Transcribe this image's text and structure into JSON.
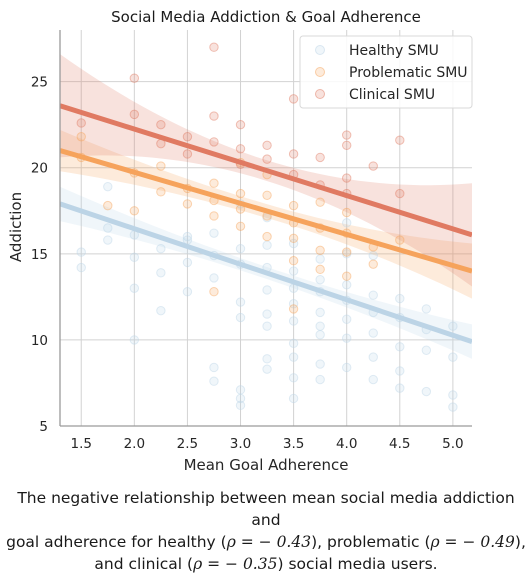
{
  "chart_data": {
    "type": "scatter",
    "title": "Social Media Addiction & Goal Adherence",
    "xlabel": "Mean Goal Adherence",
    "ylabel": "Addiction",
    "xlim": [
      1.3,
      5.18
    ],
    "ylim": [
      5,
      28
    ],
    "xticks": [
      "1.5",
      "2.0",
      "2.5",
      "3.0",
      "3.5",
      "4.0",
      "4.5",
      "5.0"
    ],
    "yticks": [
      "5",
      "10",
      "15",
      "20",
      "25"
    ],
    "grid": true,
    "legend_position": "top-right",
    "series": [
      {
        "name": "Healthy SMU",
        "color": "#bcd4e6",
        "trend": {
          "x": [
            1.3,
            5.18
          ],
          "y": [
            17.9,
            9.9
          ]
        },
        "ci_halfwidth": [
          1.0,
          0.35,
          1.0
        ],
        "points": [
          [
            1.5,
            14.2
          ],
          [
            1.5,
            15.1
          ],
          [
            1.75,
            16.5
          ],
          [
            1.75,
            18.9
          ],
          [
            1.75,
            15.8
          ],
          [
            2.0,
            16.1
          ],
          [
            2.0,
            14.8
          ],
          [
            2.0,
            13.0
          ],
          [
            2.0,
            10.0
          ],
          [
            2.25,
            15.3
          ],
          [
            2.25,
            13.9
          ],
          [
            2.25,
            11.7
          ],
          [
            2.5,
            16.0
          ],
          [
            2.5,
            14.5
          ],
          [
            2.5,
            12.8
          ],
          [
            2.5,
            15.8
          ],
          [
            2.75,
            16.2
          ],
          [
            2.75,
            14.9
          ],
          [
            2.75,
            13.6
          ],
          [
            2.75,
            8.4
          ],
          [
            2.75,
            7.6
          ],
          [
            3.0,
            17.9
          ],
          [
            3.0,
            15.3
          ],
          [
            3.0,
            14.4
          ],
          [
            3.0,
            12.2
          ],
          [
            3.0,
            11.3
          ],
          [
            3.0,
            7.1
          ],
          [
            3.0,
            6.6
          ],
          [
            3.0,
            6.2
          ],
          [
            3.25,
            17.1
          ],
          [
            3.25,
            15.5
          ],
          [
            3.25,
            14.2
          ],
          [
            3.25,
            12.9
          ],
          [
            3.25,
            11.5
          ],
          [
            3.25,
            10.8
          ],
          [
            3.25,
            8.3
          ],
          [
            3.25,
            8.9
          ],
          [
            3.5,
            15.6
          ],
          [
            3.5,
            14.0
          ],
          [
            3.5,
            13.0
          ],
          [
            3.5,
            12.1
          ],
          [
            3.5,
            11.1
          ],
          [
            3.5,
            9.8
          ],
          [
            3.5,
            9.0
          ],
          [
            3.5,
            7.8
          ],
          [
            3.5,
            6.6
          ],
          [
            3.75,
            14.7
          ],
          [
            3.75,
            13.5
          ],
          [
            3.75,
            12.8
          ],
          [
            3.75,
            11.6
          ],
          [
            3.75,
            10.8
          ],
          [
            3.75,
            10.3
          ],
          [
            3.75,
            8.6
          ],
          [
            3.75,
            7.7
          ],
          [
            4.0,
            16.8
          ],
          [
            4.0,
            15.0
          ],
          [
            4.0,
            13.2
          ],
          [
            4.0,
            12.3
          ],
          [
            4.0,
            11.2
          ],
          [
            4.0,
            10.1
          ],
          [
            4.0,
            8.4
          ],
          [
            4.25,
            14.9
          ],
          [
            4.25,
            12.6
          ],
          [
            4.25,
            11.6
          ],
          [
            4.25,
            10.4
          ],
          [
            4.25,
            9.0
          ],
          [
            4.25,
            7.7
          ],
          [
            4.5,
            12.4
          ],
          [
            4.5,
            11.3
          ],
          [
            4.5,
            9.6
          ],
          [
            4.5,
            8.2
          ],
          [
            4.5,
            7.2
          ],
          [
            4.75,
            11.8
          ],
          [
            4.75,
            10.6
          ],
          [
            4.75,
            9.4
          ],
          [
            4.75,
            7.0
          ],
          [
            5.0,
            10.8
          ],
          [
            5.0,
            9.0
          ],
          [
            5.0,
            6.8
          ],
          [
            5.0,
            6.1
          ]
        ]
      },
      {
        "name": "Problematic SMU",
        "color": "#f6a35c",
        "trend": {
          "x": [
            1.3,
            5.18
          ],
          "y": [
            21.0,
            14.0
          ]
        },
        "ci_halfwidth": [
          1.2,
          0.4,
          1.6
        ],
        "points": [
          [
            1.5,
            20.6
          ],
          [
            1.5,
            21.8
          ],
          [
            1.75,
            17.8
          ],
          [
            2.0,
            19.7
          ],
          [
            2.0,
            17.5
          ],
          [
            2.25,
            18.6
          ],
          [
            2.25,
            20.1
          ],
          [
            2.5,
            18.8
          ],
          [
            2.5,
            17.9
          ],
          [
            2.75,
            19.1
          ],
          [
            2.75,
            18.1
          ],
          [
            2.75,
            17.2
          ],
          [
            2.75,
            12.8
          ],
          [
            3.0,
            18.5
          ],
          [
            3.0,
            17.6
          ],
          [
            3.0,
            16.6
          ],
          [
            3.0,
            20.3
          ],
          [
            3.25,
            18.4
          ],
          [
            3.25,
            17.2
          ],
          [
            3.25,
            16.0
          ],
          [
            3.25,
            19.6
          ],
          [
            3.5,
            17.8
          ],
          [
            3.5,
            16.8
          ],
          [
            3.5,
            15.9
          ],
          [
            3.5,
            14.6
          ],
          [
            3.5,
            11.8
          ],
          [
            3.75,
            16.5
          ],
          [
            3.75,
            15.2
          ],
          [
            3.75,
            14.1
          ],
          [
            3.75,
            18.0
          ],
          [
            4.0,
            16.2
          ],
          [
            4.0,
            15.1
          ],
          [
            4.0,
            13.7
          ],
          [
            4.0,
            17.4
          ],
          [
            4.25,
            15.4
          ],
          [
            4.25,
            14.4
          ],
          [
            4.5,
            15.8
          ]
        ]
      },
      {
        "name": "Clinical SMU",
        "color": "#e07a62",
        "trend": {
          "x": [
            1.3,
            5.18
          ],
          "y": [
            23.6,
            16.1
          ]
        },
        "ci_halfwidth": [
          3.0,
          0.6,
          3.0
        ],
        "points": [
          [
            1.5,
            22.6
          ],
          [
            2.0,
            25.2
          ],
          [
            2.0,
            23.1
          ],
          [
            2.25,
            22.5
          ],
          [
            2.25,
            21.4
          ],
          [
            2.5,
            21.8
          ],
          [
            2.5,
            20.8
          ],
          [
            2.75,
            27.0
          ],
          [
            2.75,
            23.0
          ],
          [
            2.75,
            21.5
          ],
          [
            3.0,
            22.5
          ],
          [
            3.0,
            21.1
          ],
          [
            3.0,
            20.2
          ],
          [
            3.25,
            21.3
          ],
          [
            3.25,
            20.5
          ],
          [
            3.5,
            24.0
          ],
          [
            3.5,
            20.8
          ],
          [
            3.5,
            19.6
          ],
          [
            3.75,
            20.6
          ],
          [
            3.75,
            19.0
          ],
          [
            4.0,
            21.9
          ],
          [
            4.0,
            21.3
          ],
          [
            4.0,
            19.4
          ],
          [
            4.0,
            18.5
          ],
          [
            4.25,
            20.1
          ],
          [
            4.5,
            21.6
          ],
          [
            4.5,
            18.5
          ]
        ]
      }
    ]
  },
  "caption": {
    "line1": "The negative relationship between mean social media addiction and",
    "line2_a": "goal adherence for healthy (",
    "rho_a": "ρ = − 0.43",
    "line2_b": "), problematic (",
    "rho_b": "ρ = − 0.49",
    "line2_c": "),",
    "line3_a": "and clinical (",
    "rho_c": "ρ = − 0.35",
    "line3_b": ") social media users."
  }
}
